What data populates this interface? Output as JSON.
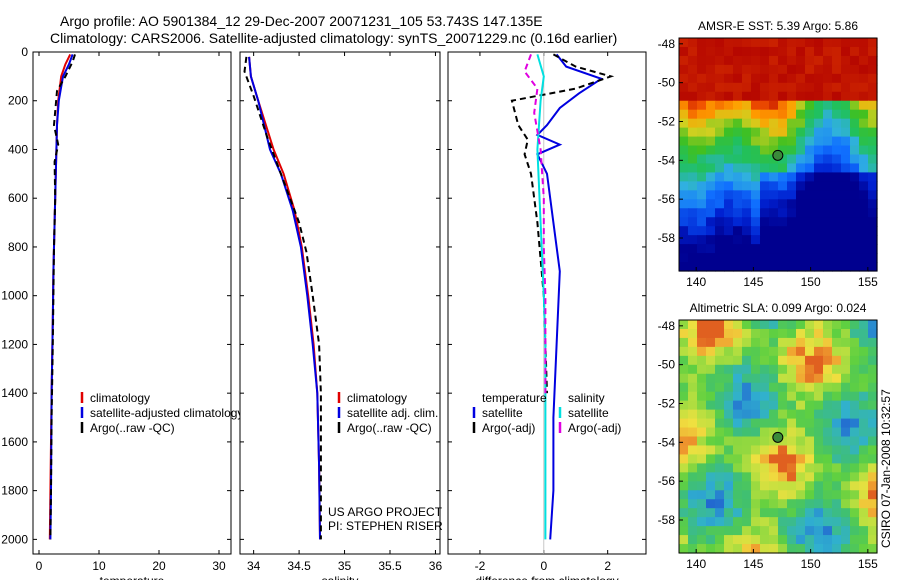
{
  "header": {
    "line1": "Argo profile: AO 5901384_12 29-Dec-2007 20071231_105 53.743S 147.135E",
    "line2": "Climatology: CARS2006. Satellite-adjusted climatology: synTS_20071229.nc (0.16d earlier)"
  },
  "credit": {
    "project": "US ARGO PROJECT",
    "pi": "PI: STEPHEN RISER",
    "stamp": "CSIRO 07-Jan-2008 10:32:57"
  },
  "chart_data": [
    {
      "id": "temperature",
      "type": "line",
      "xlabel": "temperature",
      "ylabel": "",
      "xlim": [
        -1,
        32
      ],
      "ylim": [
        2060,
        0
      ],
      "xticks": [
        0,
        10,
        20,
        30
      ],
      "yticks": [
        0,
        200,
        400,
        600,
        800,
        1000,
        1200,
        1400,
        1600,
        1800,
        2000
      ],
      "legend": [
        {
          "label": "climatology",
          "color": "#e00000"
        },
        {
          "label": "satellite-adjusted climatology",
          "color": "#0000e0"
        },
        {
          "label": "Argo(..raw -QC)",
          "color": "#000000"
        }
      ],
      "series": [
        {
          "name": "climatology",
          "color": "#e00000",
          "dash": "",
          "x": [
            5.2,
            4.4,
            3.7,
            3.2,
            3.0,
            2.8,
            2.6,
            2.4,
            2.3,
            2.1,
            1.9,
            1.8
          ],
          "y": [
            10,
            50,
            100,
            200,
            300,
            500,
            700,
            900,
            1100,
            1400,
            1800,
            2000
          ]
        },
        {
          "name": "satellite-adjusted climatology",
          "color": "#0000e0",
          "dash": "",
          "x": [
            5.6,
            5.0,
            4.0,
            3.3,
            3.0,
            2.8,
            2.6,
            2.4,
            2.3,
            2.1,
            2.0,
            1.9
          ],
          "y": [
            10,
            50,
            100,
            200,
            300,
            500,
            700,
            900,
            1100,
            1400,
            1800,
            2000
          ]
        },
        {
          "name": "Argo(..raw -QC)",
          "color": "#000000",
          "dash": "6,4",
          "x": [
            6.0,
            5.6,
            4.4,
            3.0,
            2.5,
            3.2,
            2.6,
            2.7,
            2.5,
            2.4,
            2.3,
            2.1,
            2.0,
            1.9
          ],
          "y": [
            10,
            40,
            100,
            160,
            300,
            380,
            450,
            600,
            800,
            1000,
            1200,
            1500,
            1800,
            2000
          ]
        }
      ]
    },
    {
      "id": "salinity",
      "type": "line",
      "xlabel": "salinity",
      "ylabel": "",
      "xlim": [
        33.85,
        36.05
      ],
      "ylim": [
        2060,
        0
      ],
      "xticks": [
        34,
        34.5,
        35,
        35.5,
        36
      ],
      "xticklabels": [
        "34",
        "34.5",
        "35",
        "35.5",
        "36"
      ],
      "yticks": [
        0,
        200,
        400,
        600,
        800,
        1000,
        1200,
        1400,
        1600,
        1800,
        2000
      ],
      "legend": [
        {
          "label": "climatology",
          "color": "#e00000"
        },
        {
          "label": "satellite adj. clim.",
          "color": "#0000e0"
        },
        {
          "label": "Argo(..raw -QC)",
          "color": "#000000"
        }
      ],
      "series": [
        {
          "name": "climatology",
          "color": "#e00000",
          "dash": "",
          "x": [
            33.95,
            33.97,
            34.05,
            34.22,
            34.33,
            34.45,
            34.53,
            34.6,
            34.66,
            34.7,
            34.72,
            34.73
          ],
          "y": [
            20,
            100,
            200,
            400,
            500,
            650,
            800,
            1000,
            1200,
            1400,
            1700,
            2000
          ]
        },
        {
          "name": "satellite adj. clim.",
          "color": "#0000e0",
          "dash": "",
          "x": [
            33.95,
            33.97,
            34.05,
            34.18,
            34.3,
            34.43,
            34.52,
            34.59,
            34.65,
            34.7,
            34.72,
            34.73
          ],
          "y": [
            20,
            100,
            200,
            400,
            500,
            650,
            800,
            1000,
            1200,
            1400,
            1700,
            2000
          ]
        },
        {
          "name": "Argo(..raw -QC)",
          "color": "#000000",
          "dash": "6,4",
          "x": [
            33.92,
            33.9,
            34.0,
            34.15,
            34.3,
            34.5,
            34.58,
            34.65,
            34.72,
            34.74,
            34.74,
            34.74
          ],
          "y": [
            20,
            80,
            180,
            350,
            500,
            700,
            820,
            1000,
            1200,
            1400,
            1700,
            2000
          ]
        }
      ]
    },
    {
      "id": "difference",
      "type": "line",
      "xlabel": "difference from climatology",
      "ylabel": "",
      "xlim": [
        -3.0,
        3.2
      ],
      "ylim": [
        2060,
        0
      ],
      "xticks": [
        -2,
        0,
        2
      ],
      "yticks": [
        0,
        200,
        400,
        600,
        800,
        1000,
        1200,
        1400,
        1600,
        1800,
        2000
      ],
      "legend": [
        {
          "label": "temperature",
          "color": "",
          "heading": true
        },
        {
          "label": "satellite",
          "color": "#0000e0"
        },
        {
          "label": "Argo(-adj)",
          "color": "#000000"
        },
        {
          "label": "salinity",
          "color": "",
          "heading": true
        },
        {
          "label": "satellite",
          "color": "#00e0e0"
        },
        {
          "label": "Argo(-adj)",
          "color": "#e000e0"
        }
      ],
      "series": [
        {
          "name": "temperature satellite",
          "color": "#0000e0",
          "dash": "",
          "x": [
            0.4,
            0.7,
            1.8,
            1.1,
            0.5,
            0.1,
            -0.2,
            0.5,
            -0.2,
            0.1,
            0.3,
            0.5,
            0.4,
            0.3,
            0.3,
            0.2
          ],
          "y": [
            10,
            60,
            110,
            170,
            230,
            300,
            340,
            380,
            420,
            500,
            700,
            900,
            1200,
            1500,
            1800,
            2000
          ]
        },
        {
          "name": "temperature Argo(-adj)",
          "color": "#000000",
          "dash": "6,4",
          "x": [
            0.3,
            1.0,
            2.1,
            1.0,
            -1.0,
            -0.8,
            -0.5,
            -0.6,
            -0.4,
            -0.2,
            0.0,
            0.1
          ],
          "y": [
            10,
            60,
            100,
            150,
            200,
            300,
            360,
            420,
            500,
            700,
            1000,
            1400
          ]
        },
        {
          "name": "salinity satellite",
          "color": "#00e0e0",
          "dash": "",
          "x": [
            -0.2,
            0.0,
            -0.1,
            -0.2,
            -0.1,
            0.0,
            0.05,
            0.05,
            0.05,
            0.05,
            0.05,
            0.05
          ],
          "y": [
            10,
            100,
            200,
            400,
            700,
            1000,
            1200,
            1400,
            1600,
            1800,
            1900,
            2000
          ]
        },
        {
          "name": "salinity Argo(-adj)",
          "color": "#e000e0",
          "dash": "6,4",
          "x": [
            -0.4,
            -0.6,
            -0.2,
            -0.3,
            -0.1,
            0.0,
            0.0,
            0.05,
            0.05,
            0.05
          ],
          "y": [
            10,
            80,
            150,
            250,
            400,
            600,
            800,
            1000,
            1200,
            1400
          ]
        }
      ]
    }
  ],
  "maps": [
    {
      "id": "sst",
      "title": "AMSR-E SST: 5.39 Argo: 5.86",
      "xlim": [
        138.5,
        155.8
      ],
      "ylim": [
        -59.7,
        -47.7
      ],
      "xticks": [
        140,
        145,
        150,
        155
      ],
      "yticks": [
        -48,
        -50,
        -52,
        -54,
        -56,
        -58
      ],
      "marker": {
        "lon": 147.135,
        "lat": -53.743
      },
      "palette": "sst"
    },
    {
      "id": "sla",
      "title": "Altimetric SLA: 0.099 Argo: 0.024",
      "xlim": [
        138.5,
        155.8
      ],
      "ylim": [
        -59.7,
        -47.7
      ],
      "xticks": [
        140,
        145,
        150,
        155
      ],
      "yticks": [
        -48,
        -50,
        -52,
        -54,
        -56,
        -58
      ],
      "marker": {
        "lon": 147.135,
        "lat": -53.743
      },
      "palette": "sla"
    }
  ]
}
